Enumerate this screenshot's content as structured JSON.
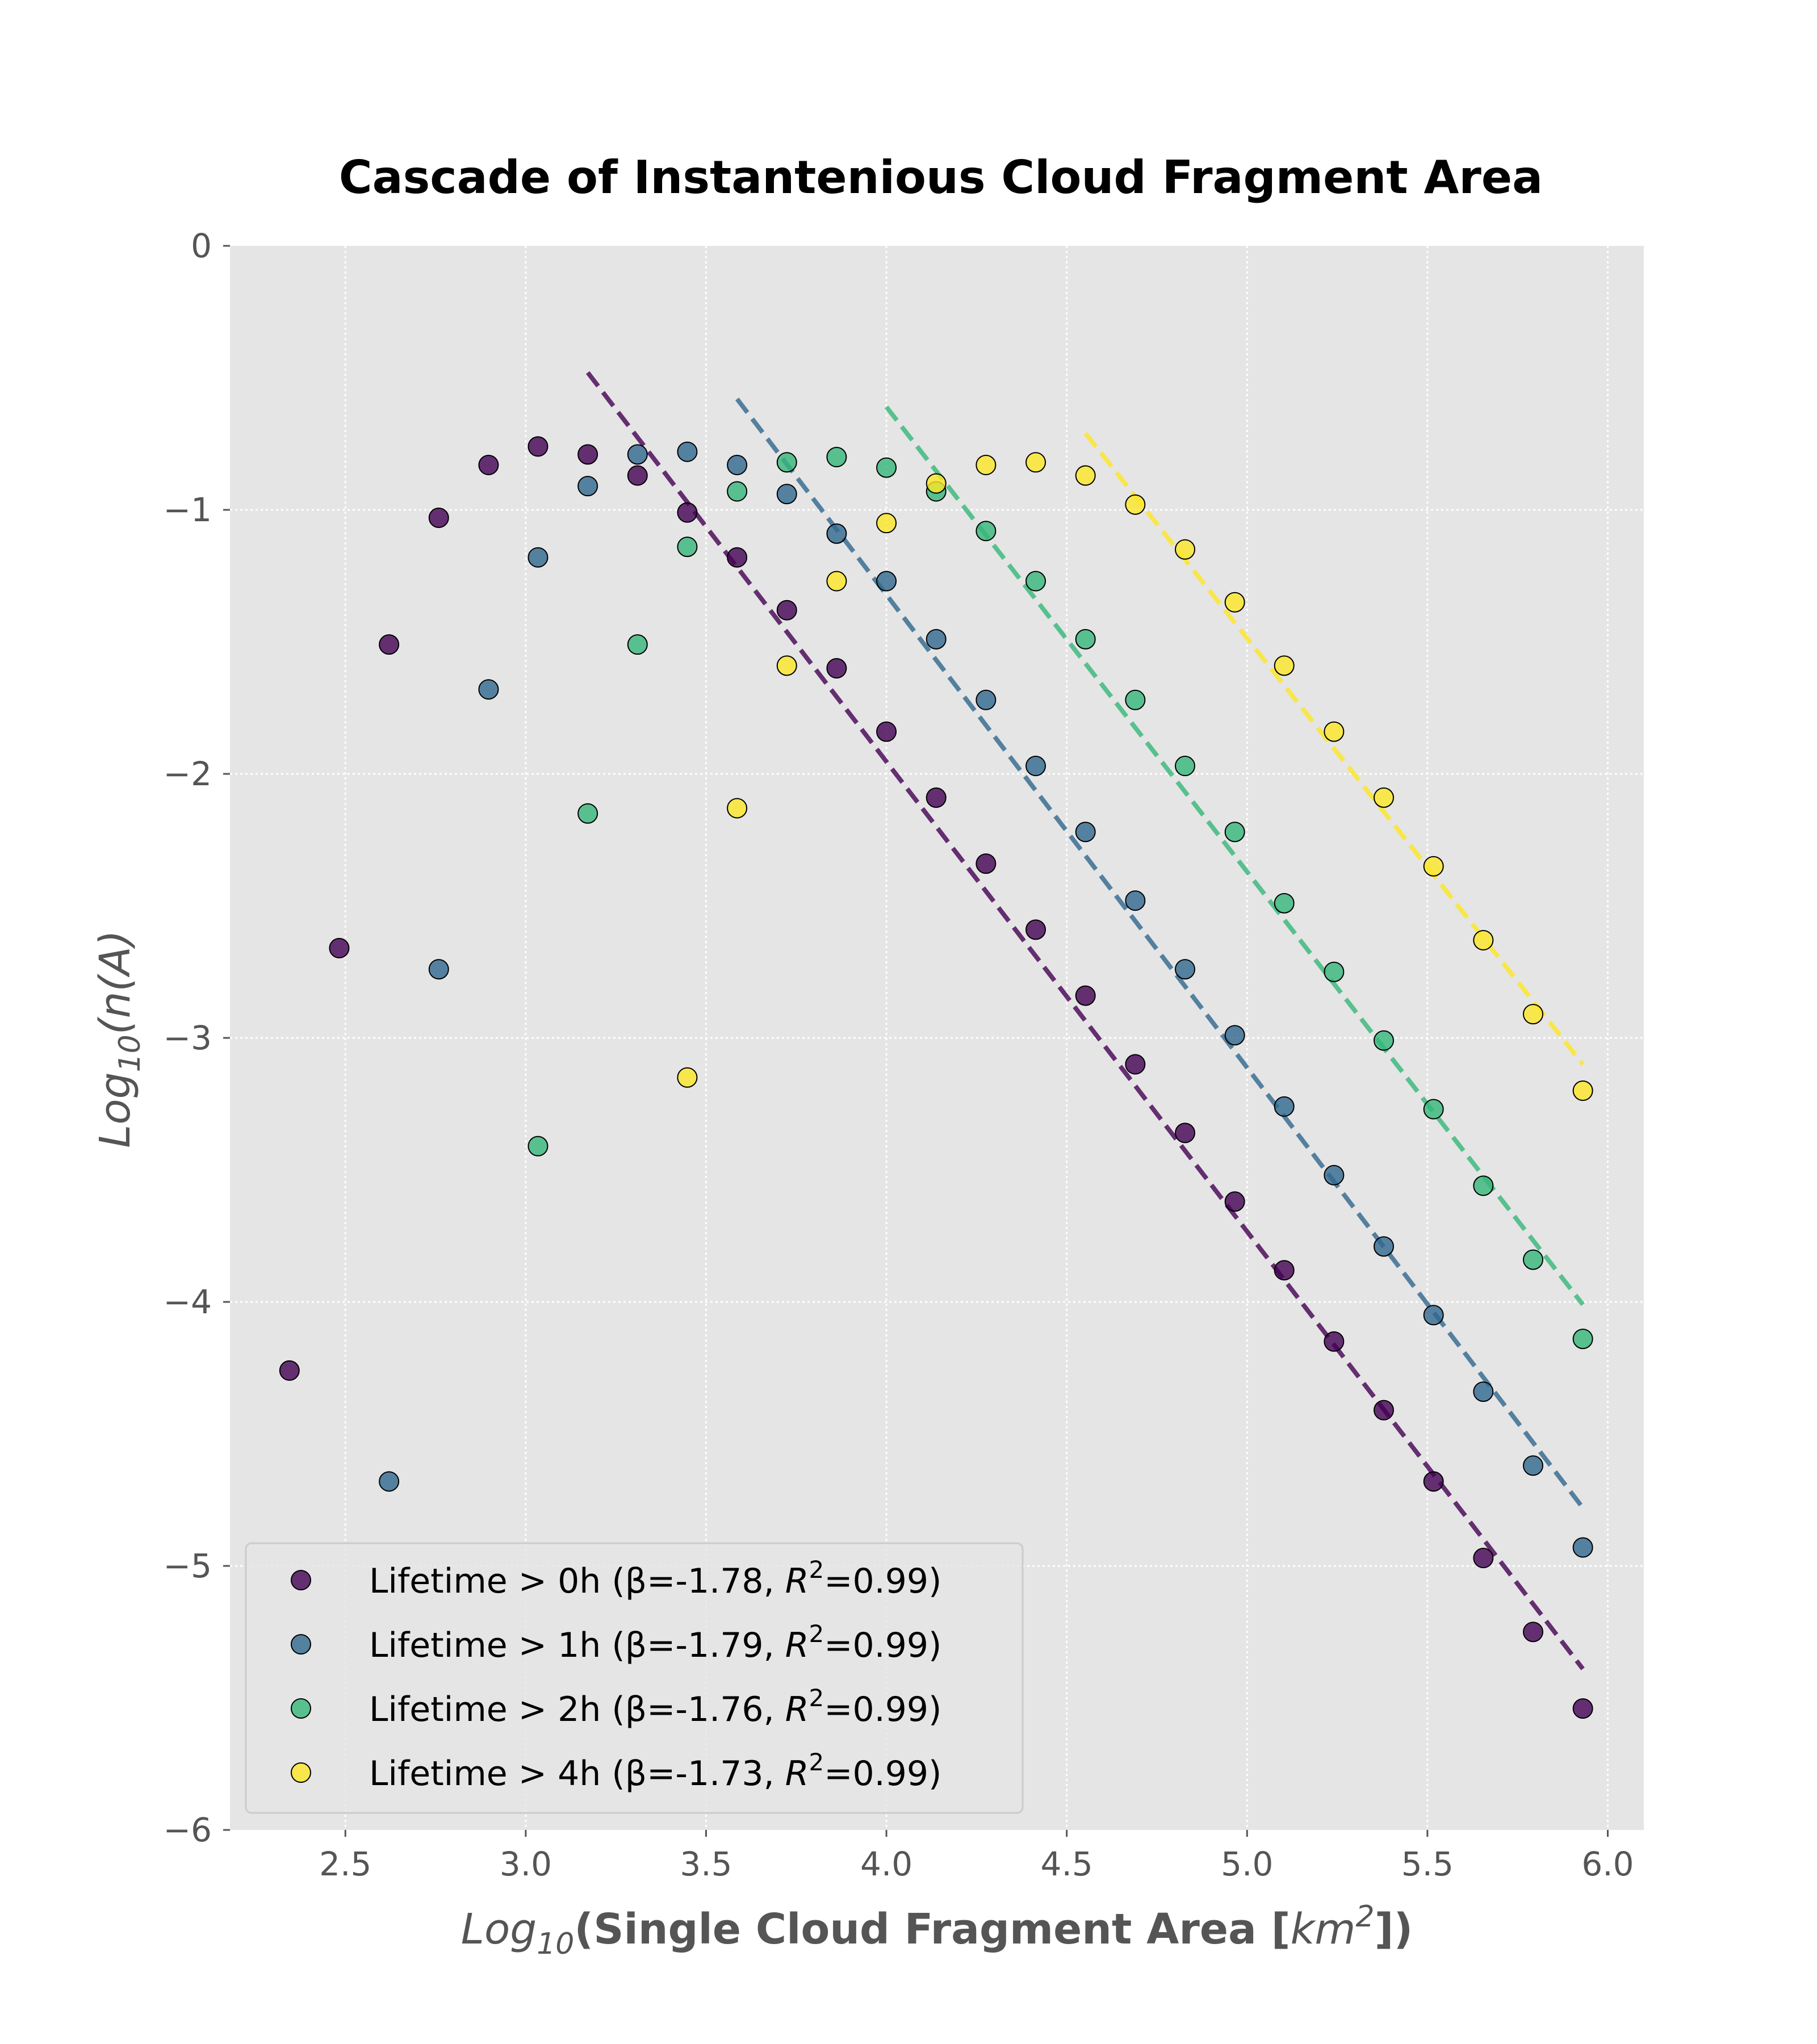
{
  "colors": {
    "axes_bg": "#e5e5e5",
    "grid": "#ffffff",
    "tick": "#555555",
    "marker_edge": "#000000",
    "series": [
      "#440154",
      "#31688e",
      "#35b779",
      "#fde725"
    ]
  },
  "chart_data": {
    "type": "scatter",
    "title": "Cascade of Instantenious Cloud Fragment Area",
    "xlabel": {
      "prefix": "Log",
      "subscript": "10",
      "open": "(Single Cloud Fragment Area [",
      "unit": "km",
      "superscript": "2",
      "close": "])"
    },
    "ylabel": {
      "prefix": "Log",
      "subscript": "10",
      "body": "(n(A)"
    },
    "xlim": [
      2.18,
      6.1
    ],
    "ylim": [
      -6,
      0
    ],
    "xticks": [
      2.5,
      3.0,
      3.5,
      4.0,
      4.5,
      5.0,
      5.5,
      6.0
    ],
    "xtick_labels": [
      "2.5",
      "3.0",
      "3.5",
      "4.0",
      "4.5",
      "5.0",
      "5.5",
      "6.0"
    ],
    "yticks": [
      0,
      -1,
      -2,
      -3,
      -4,
      -5,
      -6
    ],
    "ytick_labels": [
      "0",
      "−1",
      "−2",
      "−3",
      "−4",
      "−5",
      "−6"
    ],
    "grid": true,
    "legend_position": "lower-left",
    "series": [
      {
        "name": "Lifetime > 0h (β=-1.78, R²=0.99)",
        "legend": {
          "prefix": "Lifetime > 0h (β=-1.78, ",
          "r": "R",
          "sup": "2",
          "suffix": "=0.99)"
        },
        "x": [
          2.345,
          2.483,
          2.621,
          2.759,
          2.897,
          3.034,
          3.172,
          3.31,
          3.448,
          3.586,
          3.724,
          3.862,
          4.0,
          4.138,
          4.276,
          4.414,
          4.552,
          4.69,
          4.828,
          4.966,
          5.103,
          5.241,
          5.379,
          5.517,
          5.655,
          5.793,
          5.931
        ],
        "y": [
          -4.26,
          -2.66,
          -1.51,
          -1.03,
          -0.83,
          -0.76,
          -0.79,
          -0.87,
          -1.01,
          -1.18,
          -1.38,
          -1.6,
          -1.84,
          -2.09,
          -2.34,
          -2.59,
          -2.84,
          -3.1,
          -3.36,
          -3.62,
          -3.88,
          -4.15,
          -4.41,
          -4.68,
          -4.97,
          -5.25,
          -5.54
        ],
        "fit": {
          "x": [
            3.172,
            5.931
          ],
          "y": [
            -0.48,
            -5.39
          ]
        }
      },
      {
        "name": "Lifetime > 1h (β=-1.79, R²=0.99)",
        "legend": {
          "prefix": "Lifetime > 1h (β=-1.79, ",
          "r": "R",
          "sup": "2",
          "suffix": "=0.99)"
        },
        "x": [
          2.621,
          2.759,
          2.897,
          3.034,
          3.172,
          3.31,
          3.448,
          3.586,
          3.724,
          3.862,
          4.0,
          4.138,
          4.276,
          4.414,
          4.552,
          4.69,
          4.828,
          4.966,
          5.103,
          5.241,
          5.379,
          5.517,
          5.655,
          5.793,
          5.931
        ],
        "y": [
          -4.68,
          -2.74,
          -1.68,
          -1.18,
          -0.91,
          -0.79,
          -0.78,
          -0.83,
          -0.94,
          -1.09,
          -1.27,
          -1.49,
          -1.72,
          -1.97,
          -2.22,
          -2.48,
          -2.74,
          -2.99,
          -3.26,
          -3.52,
          -3.79,
          -4.05,
          -4.34,
          -4.62,
          -4.93
        ],
        "fit": {
          "x": [
            3.586,
            5.931
          ],
          "y": [
            -0.58,
            -4.78
          ]
        }
      },
      {
        "name": "Lifetime > 2h (β=-1.76, R²=0.99)",
        "legend": {
          "prefix": "Lifetime > 2h (β=-1.76, ",
          "r": "R",
          "sup": "2",
          "suffix": "=0.99)"
        },
        "x": [
          3.034,
          3.172,
          3.31,
          3.448,
          3.586,
          3.724,
          3.862,
          4.0,
          4.138,
          4.276,
          4.414,
          4.552,
          4.69,
          4.828,
          4.966,
          5.103,
          5.241,
          5.379,
          5.517,
          5.655,
          5.793,
          5.931
        ],
        "y": [
          -3.41,
          -2.15,
          -1.51,
          -1.14,
          -0.93,
          -0.82,
          -0.8,
          -0.84,
          -0.93,
          -1.08,
          -1.27,
          -1.49,
          -1.72,
          -1.97,
          -2.22,
          -2.49,
          -2.75,
          -3.01,
          -3.27,
          -3.56,
          -3.84,
          -4.14
        ],
        "fit": {
          "x": [
            4.0,
            5.931
          ],
          "y": [
            -0.61,
            -4.01
          ]
        }
      },
      {
        "name": "Lifetime > 4h (β=-1.73, R²=0.99)",
        "legend": {
          "prefix": "Lifetime > 4h (β=-1.73, ",
          "r": "R",
          "sup": "2",
          "suffix": "=0.99)"
        },
        "x": [
          3.448,
          3.586,
          3.724,
          3.862,
          4.0,
          4.138,
          4.276,
          4.414,
          4.552,
          4.69,
          4.828,
          4.966,
          5.103,
          5.241,
          5.379,
          5.517,
          5.655,
          5.793,
          5.931
        ],
        "y": [
          -3.15,
          -2.13,
          -1.59,
          -1.27,
          -1.05,
          -0.9,
          -0.83,
          -0.82,
          -0.87,
          -0.98,
          -1.15,
          -1.35,
          -1.59,
          -1.84,
          -2.09,
          -2.35,
          -2.63,
          -2.91,
          -3.2
        ],
        "fit": {
          "x": [
            4.552,
            5.931
          ],
          "y": [
            -0.71,
            -3.1
          ]
        }
      }
    ]
  }
}
